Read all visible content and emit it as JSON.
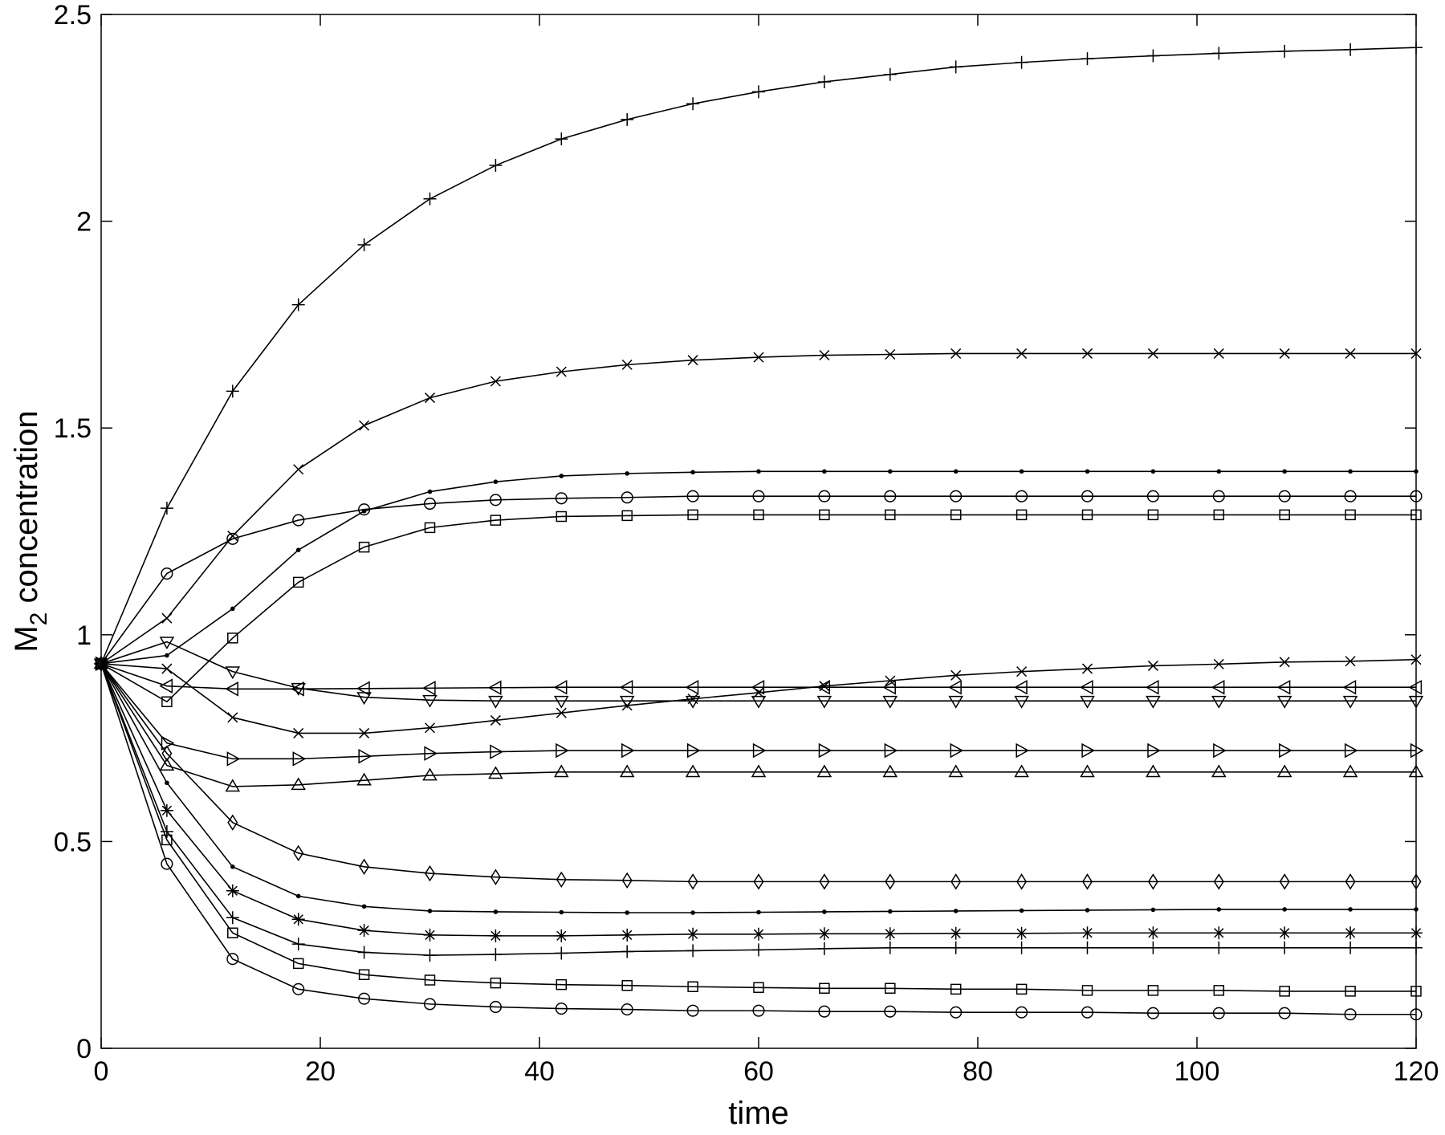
{
  "chart_data": {
    "type": "line",
    "xlabel": "time",
    "ylabel": [
      "M",
      "2",
      " concentration"
    ],
    "color": "#000000",
    "x": [
      0,
      6,
      12,
      18,
      24,
      30,
      36,
      42,
      48,
      54,
      60,
      66,
      72,
      78,
      84,
      90,
      96,
      102,
      108,
      114,
      120
    ],
    "xlim": [
      0,
      120
    ],
    "xticks": [
      0,
      20,
      40,
      60,
      80,
      100,
      120
    ],
    "ylim": [
      0,
      2.5
    ],
    "yticks": [
      0,
      0.5,
      1,
      1.5,
      2,
      2.5
    ],
    "grid": false,
    "series": [
      {
        "marker": "plus",
        "values": [
          0.93,
          1.306,
          1.589,
          1.798,
          1.943,
          2.054,
          2.135,
          2.199,
          2.246,
          2.284,
          2.313,
          2.337,
          2.355,
          2.373,
          2.384,
          2.393,
          2.4,
          2.406,
          2.411,
          2.415,
          2.42
        ]
      },
      {
        "marker": "x",
        "values": [
          0.93,
          1.04,
          1.239,
          1.4,
          1.506,
          1.573,
          1.613,
          1.636,
          1.653,
          1.664,
          1.671,
          1.676,
          1.678,
          1.68,
          1.68,
          1.68,
          1.68,
          1.68,
          1.68,
          1.68,
          1.68
        ]
      },
      {
        "marker": "dot",
        "values": [
          0.93,
          0.95,
          1.063,
          1.205,
          1.299,
          1.346,
          1.37,
          1.384,
          1.39,
          1.393,
          1.395,
          1.395,
          1.395,
          1.395,
          1.395,
          1.395,
          1.395,
          1.395,
          1.395,
          1.395,
          1.395
        ]
      },
      {
        "marker": "circle",
        "values": [
          0.93,
          1.148,
          1.232,
          1.277,
          1.303,
          1.317,
          1.326,
          1.33,
          1.332,
          1.335,
          1.335,
          1.335,
          1.335,
          1.335,
          1.335,
          1.335,
          1.335,
          1.335,
          1.335,
          1.335,
          1.335
        ]
      },
      {
        "marker": "square",
        "values": [
          0.93,
          0.838,
          0.992,
          1.127,
          1.212,
          1.259,
          1.277,
          1.286,
          1.288,
          1.29,
          1.29,
          1.29,
          1.29,
          1.29,
          1.29,
          1.29,
          1.29,
          1.29,
          1.29,
          1.29,
          1.29
        ]
      },
      {
        "marker": "triangle-down",
        "values": [
          0.93,
          0.983,
          0.911,
          0.871,
          0.849,
          0.842,
          0.84,
          0.84,
          0.84,
          0.84,
          0.84,
          0.84,
          0.84,
          0.84,
          0.84,
          0.84,
          0.84,
          0.84,
          0.84,
          0.84,
          0.84
        ]
      },
      {
        "marker": "triangle-left",
        "values": [
          0.93,
          0.876,
          0.869,
          0.869,
          0.87,
          0.871,
          0.872,
          0.873,
          0.873,
          0.873,
          0.873,
          0.873,
          0.873,
          0.873,
          0.873,
          0.873,
          0.873,
          0.873,
          0.873,
          0.873,
          0.873
        ]
      },
      {
        "marker": "x",
        "values": [
          0.93,
          0.918,
          0.8,
          0.762,
          0.762,
          0.775,
          0.793,
          0.811,
          0.829,
          0.845,
          0.86,
          0.876,
          0.889,
          0.902,
          0.911,
          0.918,
          0.925,
          0.929,
          0.934,
          0.936,
          0.94
        ]
      },
      {
        "marker": "triangle-right",
        "values": [
          0.93,
          0.738,
          0.7,
          0.7,
          0.706,
          0.713,
          0.717,
          0.72,
          0.72,
          0.72,
          0.72,
          0.72,
          0.72,
          0.72,
          0.72,
          0.72,
          0.72,
          0.72,
          0.72,
          0.72,
          0.72
        ]
      },
      {
        "marker": "triangle-up",
        "values": [
          0.93,
          0.684,
          0.633,
          0.637,
          0.648,
          0.66,
          0.664,
          0.668,
          0.668,
          0.668,
          0.668,
          0.668,
          0.668,
          0.668,
          0.668,
          0.668,
          0.668,
          0.668,
          0.668,
          0.668,
          0.668
        ]
      },
      {
        "marker": "diamond",
        "values": [
          0.93,
          0.713,
          0.546,
          0.472,
          0.439,
          0.423,
          0.414,
          0.408,
          0.406,
          0.403,
          0.403,
          0.403,
          0.403,
          0.403,
          0.403,
          0.403,
          0.403,
          0.403,
          0.403,
          0.403,
          0.403
        ]
      },
      {
        "marker": "dot",
        "values": [
          0.93,
          0.642,
          0.439,
          0.368,
          0.343,
          0.332,
          0.33,
          0.329,
          0.328,
          0.328,
          0.329,
          0.33,
          0.331,
          0.332,
          0.333,
          0.334,
          0.335,
          0.336,
          0.336,
          0.336,
          0.336
        ]
      },
      {
        "marker": "star",
        "values": [
          0.93,
          0.575,
          0.381,
          0.312,
          0.285,
          0.274,
          0.272,
          0.272,
          0.274,
          0.276,
          0.276,
          0.277,
          0.277,
          0.278,
          0.278,
          0.279,
          0.279,
          0.279,
          0.279,
          0.279,
          0.279
        ]
      },
      {
        "marker": "plus",
        "values": [
          0.93,
          0.524,
          0.316,
          0.252,
          0.232,
          0.225,
          0.227,
          0.23,
          0.234,
          0.236,
          0.238,
          0.241,
          0.243,
          0.243,
          0.243,
          0.243,
          0.243,
          0.243,
          0.243,
          0.243,
          0.243
        ]
      },
      {
        "marker": "square",
        "values": [
          0.93,
          0.504,
          0.279,
          0.205,
          0.178,
          0.165,
          0.158,
          0.154,
          0.152,
          0.149,
          0.147,
          0.145,
          0.145,
          0.143,
          0.143,
          0.14,
          0.14,
          0.14,
          0.138,
          0.138,
          0.138
        ]
      },
      {
        "marker": "circle",
        "values": [
          0.93,
          0.446,
          0.216,
          0.143,
          0.12,
          0.107,
          0.1,
          0.096,
          0.094,
          0.091,
          0.091,
          0.089,
          0.089,
          0.087,
          0.087,
          0.087,
          0.085,
          0.085,
          0.085,
          0.082,
          0.082
        ]
      }
    ]
  }
}
